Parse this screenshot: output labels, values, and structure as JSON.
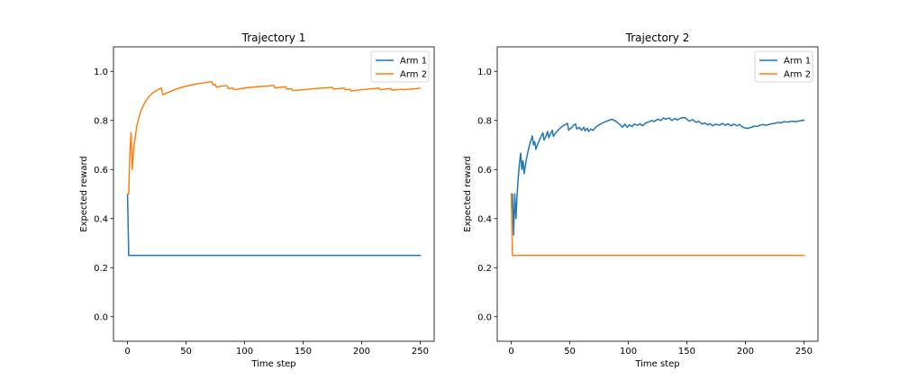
{
  "chart_data": [
    {
      "type": "line",
      "title": "Trajectory 1",
      "xlabel": "Time step",
      "ylabel": "Expected reward",
      "xlim": [
        -12,
        262
      ],
      "ylim": [
        -0.1,
        1.1
      ],
      "xticks": [
        0,
        50,
        100,
        150,
        200,
        250
      ],
      "yticks": [
        0.0,
        0.2,
        0.4,
        0.6,
        0.8,
        1.0
      ],
      "grid": false,
      "legend_position": "top-right",
      "series": [
        {
          "name": "Arm 1",
          "color": "#1f77b4",
          "points": [
            [
              0,
              0.5
            ],
            [
              1,
              0.25
            ],
            [
              250,
              0.25
            ]
          ]
        },
        {
          "name": "Arm 2",
          "color": "#ff7f0e",
          "points": [
            [
              0,
              0.5
            ],
            [
              1,
              0.5
            ],
            [
              2,
              0.667
            ],
            [
              3,
              0.75
            ],
            [
              4,
              0.6
            ],
            [
              5,
              0.667
            ],
            [
              6,
              0.714
            ],
            [
              8,
              0.778
            ],
            [
              10,
              0.818
            ],
            [
              12,
              0.846
            ],
            [
              15,
              0.875
            ],
            [
              18,
              0.895
            ],
            [
              21,
              0.91
            ],
            [
              24,
              0.92
            ],
            [
              27,
              0.928
            ],
            [
              29,
              0.932
            ],
            [
              30,
              0.905
            ],
            [
              35,
              0.915
            ],
            [
              40,
              0.925
            ],
            [
              45,
              0.933
            ],
            [
              50,
              0.94
            ],
            [
              55,
              0.945
            ],
            [
              60,
              0.95
            ],
            [
              65,
              0.953
            ],
            [
              70,
              0.957
            ],
            [
              72,
              0.958
            ],
            [
              73,
              0.945
            ],
            [
              75,
              0.947
            ],
            [
              76,
              0.935
            ],
            [
              80,
              0.94
            ],
            [
              85,
              0.942
            ],
            [
              86,
              0.93
            ],
            [
              90,
              0.932
            ],
            [
              91,
              0.925
            ],
            [
              95,
              0.928
            ],
            [
              100,
              0.932
            ],
            [
              110,
              0.937
            ],
            [
              120,
              0.94
            ],
            [
              125,
              0.943
            ],
            [
              126,
              0.932
            ],
            [
              130,
              0.935
            ],
            [
              135,
              0.937
            ],
            [
              136,
              0.928
            ],
            [
              140,
              0.929
            ],
            [
              141,
              0.922
            ],
            [
              150,
              0.925
            ],
            [
              160,
              0.93
            ],
            [
              170,
              0.933
            ],
            [
              175,
              0.935
            ],
            [
              176,
              0.928
            ],
            [
              185,
              0.932
            ],
            [
              186,
              0.925
            ],
            [
              190,
              0.927
            ],
            [
              191,
              0.92
            ],
            [
              200,
              0.925
            ],
            [
              210,
              0.93
            ],
            [
              215,
              0.932
            ],
            [
              216,
              0.925
            ],
            [
              220,
              0.928
            ],
            [
              225,
              0.93
            ],
            [
              226,
              0.923
            ],
            [
              230,
              0.925
            ],
            [
              235,
              0.927
            ],
            [
              236,
              0.925
            ],
            [
              240,
              0.927
            ],
            [
              245,
              0.929
            ],
            [
              250,
              0.931
            ]
          ]
        }
      ]
    },
    {
      "type": "line",
      "title": "Trajectory 2",
      "xlabel": "Time step",
      "ylabel": "Expected reward",
      "xlim": [
        -12,
        262
      ],
      "ylim": [
        -0.1,
        1.1
      ],
      "xticks": [
        0,
        50,
        100,
        150,
        200,
        250
      ],
      "yticks": [
        0.0,
        0.2,
        0.4,
        0.6,
        0.8,
        1.0
      ],
      "grid": false,
      "legend_position": "top-right",
      "series": [
        {
          "name": "Arm 1",
          "color": "#1f77b4",
          "points": [
            [
              0,
              0.5
            ],
            [
              1,
              0.5
            ],
            [
              2,
              0.333
            ],
            [
              3,
              0.5
            ],
            [
              4,
              0.4
            ],
            [
              5,
              0.5
            ],
            [
              6,
              0.571
            ],
            [
              7,
              0.625
            ],
            [
              8,
              0.667
            ],
            [
              9,
              0.6
            ],
            [
              10,
              0.636
            ],
            [
              11,
              0.583
            ],
            [
              12,
              0.615
            ],
            [
              13,
              0.643
            ],
            [
              14,
              0.667
            ],
            [
              15,
              0.688
            ],
            [
              16,
              0.706
            ],
            [
              17,
              0.722
            ],
            [
              18,
              0.737
            ],
            [
              19,
              0.7
            ],
            [
              20,
              0.714
            ],
            [
              21,
              0.682
            ],
            [
              22,
              0.696
            ],
            [
              23,
              0.708
            ],
            [
              25,
              0.73
            ],
            [
              27,
              0.75
            ],
            [
              28,
              0.72
            ],
            [
              30,
              0.74
            ],
            [
              31,
              0.755
            ],
            [
              32,
              0.73
            ],
            [
              34,
              0.75
            ],
            [
              35,
              0.76
            ],
            [
              36,
              0.735
            ],
            [
              38,
              0.75
            ],
            [
              40,
              0.76
            ],
            [
              42,
              0.77
            ],
            [
              45,
              0.78
            ],
            [
              48,
              0.788
            ],
            [
              49,
              0.76
            ],
            [
              50,
              0.765
            ],
            [
              52,
              0.772
            ],
            [
              53,
              0.78
            ],
            [
              55,
              0.785
            ],
            [
              56,
              0.765
            ],
            [
              58,
              0.772
            ],
            [
              60,
              0.76
            ],
            [
              62,
              0.772
            ],
            [
              63,
              0.758
            ],
            [
              65,
              0.768
            ],
            [
              66,
              0.755
            ],
            [
              68,
              0.765
            ],
            [
              70,
              0.76
            ],
            [
              72,
              0.772
            ],
            [
              75,
              0.782
            ],
            [
              78,
              0.79
            ],
            [
              82,
              0.798
            ],
            [
              86,
              0.805
            ],
            [
              89,
              0.798
            ],
            [
              91,
              0.79
            ],
            [
              93,
              0.782
            ],
            [
              95,
              0.772
            ],
            [
              97,
              0.785
            ],
            [
              99,
              0.772
            ],
            [
              101,
              0.782
            ],
            [
              103,
              0.775
            ],
            [
              105,
              0.785
            ],
            [
              108,
              0.78
            ],
            [
              110,
              0.787
            ],
            [
              112,
              0.778
            ],
            [
              115,
              0.79
            ],
            [
              118,
              0.795
            ],
            [
              120,
              0.8
            ],
            [
              122,
              0.795
            ],
            [
              125,
              0.805
            ],
            [
              128,
              0.8
            ],
            [
              130,
              0.81
            ],
            [
              132,
              0.805
            ],
            [
              135,
              0.81
            ],
            [
              137,
              0.8
            ],
            [
              140,
              0.808
            ],
            [
              142,
              0.802
            ],
            [
              145,
              0.81
            ],
            [
              148,
              0.812
            ],
            [
              150,
              0.805
            ],
            [
              152,
              0.797
            ],
            [
              155,
              0.803
            ],
            [
              158,
              0.792
            ],
            [
              160,
              0.797
            ],
            [
              163,
              0.785
            ],
            [
              165,
              0.79
            ],
            [
              168,
              0.782
            ],
            [
              170,
              0.787
            ],
            [
              172,
              0.778
            ],
            [
              175,
              0.785
            ],
            [
              178,
              0.78
            ],
            [
              180,
              0.788
            ],
            [
              183,
              0.78
            ],
            [
              185,
              0.786
            ],
            [
              188,
              0.778
            ],
            [
              190,
              0.785
            ],
            [
              193,
              0.778
            ],
            [
              195,
              0.784
            ],
            [
              197,
              0.775
            ],
            [
              199,
              0.77
            ],
            [
              202,
              0.768
            ],
            [
              205,
              0.772
            ],
            [
              208,
              0.777
            ],
            [
              210,
              0.775
            ],
            [
              212,
              0.78
            ],
            [
              215,
              0.783
            ],
            [
              218,
              0.78
            ],
            [
              221,
              0.785
            ],
            [
              225,
              0.788
            ],
            [
              228,
              0.792
            ],
            [
              230,
              0.79
            ],
            [
              233,
              0.795
            ],
            [
              236,
              0.793
            ],
            [
              240,
              0.797
            ],
            [
              243,
              0.795
            ],
            [
              247,
              0.799
            ],
            [
              250,
              0.801
            ]
          ]
        },
        {
          "name": "Arm 2",
          "color": "#ff7f0e",
          "points": [
            [
              0,
              0.5
            ],
            [
              1,
              0.25
            ],
            [
              250,
              0.25
            ]
          ]
        }
      ]
    }
  ]
}
